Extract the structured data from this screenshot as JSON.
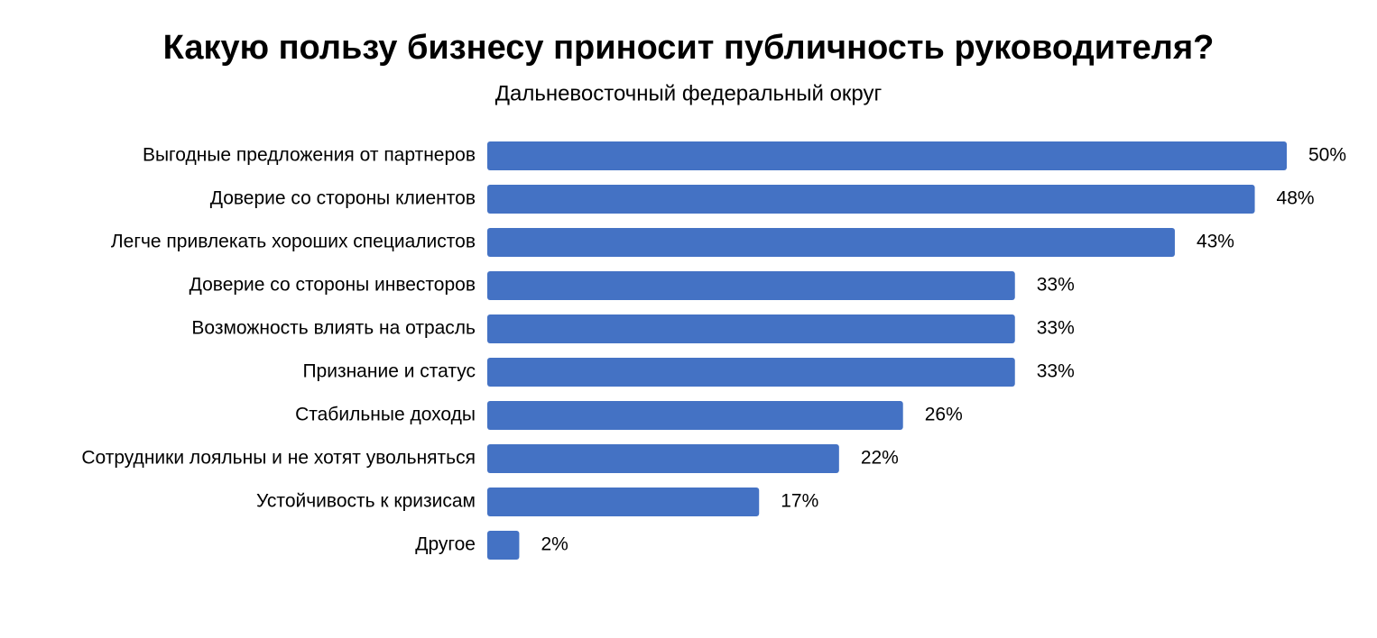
{
  "chart_data": {
    "type": "bar",
    "orientation": "horizontal",
    "title": "Какую пользу бизнесу приносит публичность руководителя?",
    "subtitle": "Дальневосточный федеральный округ",
    "categories": [
      "Выгодные предложения от партнеров",
      "Доверие со стороны клиентов",
      "Легче привлекать хороших специалистов",
      "Доверие со стороны инвесторов",
      "Возможность влиять на отрасль",
      "Признание и статус",
      "Стабильные доходы",
      "Сотрудники лояльны и не хотят увольняться",
      "Устойчивость к кризисам",
      "Другое"
    ],
    "values": [
      50,
      48,
      43,
      33,
      33,
      33,
      26,
      22,
      17,
      2
    ],
    "value_labels": [
      "50%",
      "48%",
      "43%",
      "33%",
      "33%",
      "33%",
      "26%",
      "22%",
      "17%",
      "2%"
    ],
    "color": "#4472c4"
  }
}
